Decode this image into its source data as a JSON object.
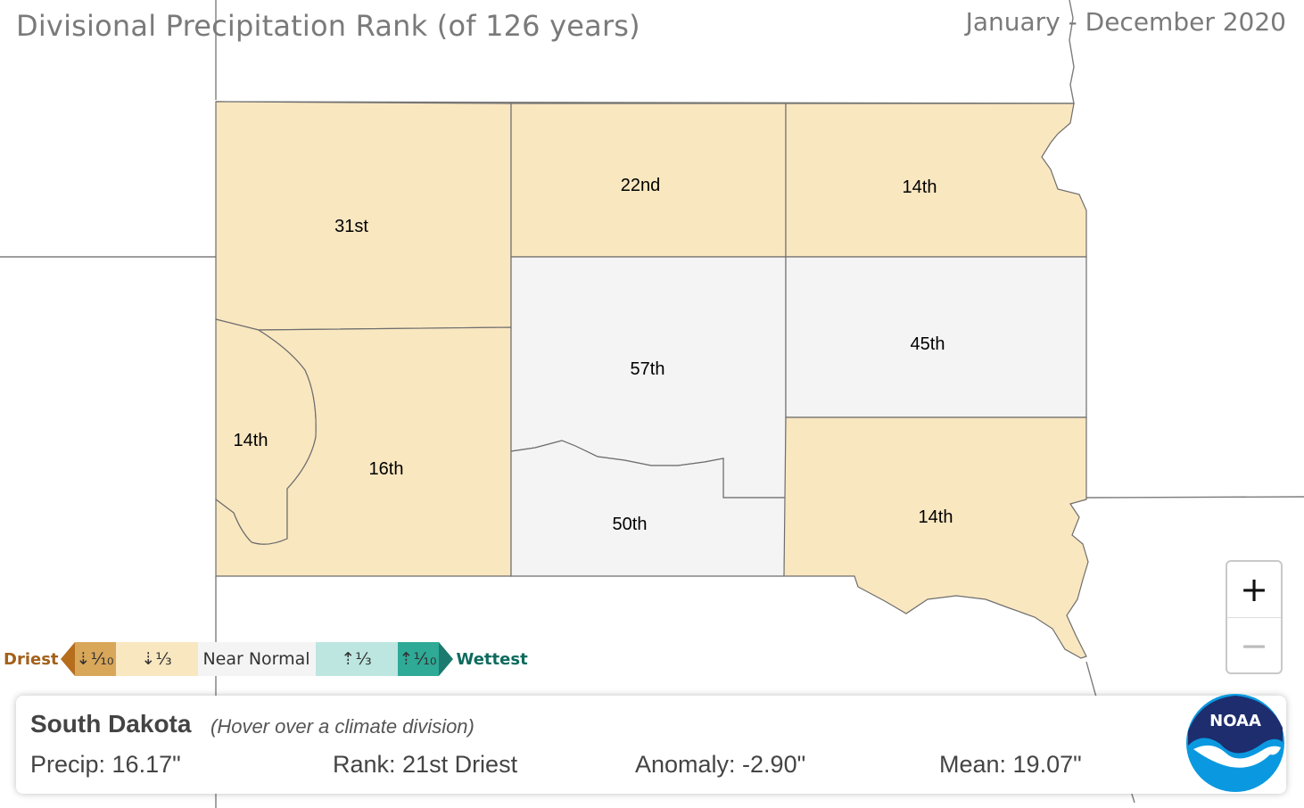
{
  "header": {
    "title": "Divisional Precipitation Rank (of 126 years)",
    "period": "January - December 2020"
  },
  "colors": {
    "below_normal": "#f9e7c0",
    "near_normal": "#f4f4f4",
    "border": "#6e6e6e"
  },
  "divisions": [
    {
      "id": "northwest",
      "rank": "31st",
      "category": "below_normal"
    },
    {
      "id": "north-central",
      "rank": "22nd",
      "category": "below_normal"
    },
    {
      "id": "northeast",
      "rank": "14th",
      "category": "below_normal"
    },
    {
      "id": "black-hills",
      "rank": "14th",
      "category": "below_normal"
    },
    {
      "id": "southwest",
      "rank": "16th",
      "category": "below_normal"
    },
    {
      "id": "central",
      "rank": "57th",
      "category": "near_normal"
    },
    {
      "id": "east-central",
      "rank": "45th",
      "category": "near_normal"
    },
    {
      "id": "south-central",
      "rank": "50th",
      "category": "near_normal"
    },
    {
      "id": "southeast",
      "rank": "14th",
      "category": "below_normal"
    }
  ],
  "legend": {
    "driest": "Driest",
    "wettest": "Wettest",
    "cells": [
      {
        "label": "⇣⅒",
        "color": "#d9a75a"
      },
      {
        "label": "⇣⅓",
        "color": "#f9e7c0"
      },
      {
        "label": "Near Normal",
        "color": "#f4f4f4"
      },
      {
        "label": "⇡⅓",
        "color": "#bde6e0"
      },
      {
        "label": "⇡⅒",
        "color": "#2eaa97"
      }
    ]
  },
  "zoom": {
    "in": "+",
    "out": "−"
  },
  "info": {
    "state": "South Dakota",
    "hint": "(Hover over a climate division)",
    "precip": "Precip: 16.17\"",
    "rank": "Rank: 21st Driest",
    "anomaly": "Anomaly: -2.90\"",
    "mean": "Mean: 19.07\""
  },
  "logo": {
    "text": "NOAA"
  }
}
